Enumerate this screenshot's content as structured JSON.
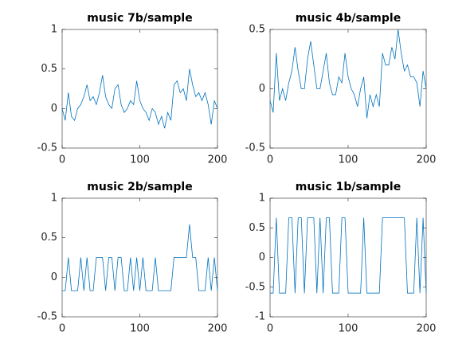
{
  "chart_data": [
    {
      "type": "line",
      "title": "music 7b/sample",
      "xlim": [
        0,
        200
      ],
      "xticks": [
        0,
        100,
        200
      ],
      "ylim": [
        -0.5,
        1
      ],
      "yticks": [
        -0.5,
        0,
        0.5,
        1
      ],
      "color": "#0072bd",
      "x": [
        0,
        4,
        8,
        12,
        16,
        20,
        24,
        28,
        32,
        36,
        40,
        44,
        48,
        52,
        56,
        60,
        64,
        68,
        72,
        76,
        80,
        84,
        88,
        92,
        96,
        100,
        104,
        108,
        112,
        116,
        120,
        124,
        128,
        132,
        136,
        140,
        144,
        148,
        152,
        156,
        160,
        164,
        168,
        172,
        176,
        180,
        184,
        188,
        192,
        196,
        200
      ],
      "values": [
        0,
        -0.15,
        0.2,
        -0.1,
        -0.15,
        0,
        0.05,
        0.15,
        0.3,
        0.1,
        0.15,
        0.05,
        0.2,
        0.42,
        0.15,
        0.05,
        0,
        0.25,
        0.3,
        0.05,
        -0.05,
        0,
        0.1,
        0.05,
        0.35,
        0.1,
        0,
        -0.05,
        -0.15,
        0,
        -0.05,
        -0.2,
        -0.1,
        -0.25,
        -0.05,
        -0.15,
        0.3,
        0.35,
        0.2,
        0.25,
        0.1,
        0.5,
        0.3,
        0.15,
        0.2,
        0.1,
        0.2,
        0.05,
        -0.2,
        0.1,
        0
      ]
    },
    {
      "type": "line",
      "title": "music 4b/sample",
      "xlim": [
        0,
        200
      ],
      "xticks": [
        0,
        100,
        200
      ],
      "ylim": [
        -0.5,
        0.5
      ],
      "yticks": [
        -0.5,
        0,
        0.5
      ],
      "color": "#0072bd",
      "x": [
        0,
        4,
        8,
        12,
        16,
        20,
        24,
        28,
        32,
        36,
        40,
        44,
        48,
        52,
        56,
        60,
        64,
        68,
        72,
        76,
        80,
        84,
        88,
        92,
        96,
        100,
        104,
        108,
        112,
        116,
        120,
        124,
        128,
        132,
        136,
        140,
        144,
        148,
        152,
        156,
        160,
        164,
        168,
        172,
        176,
        180,
        184,
        188,
        192,
        196,
        200
      ],
      "values": [
        -0.1,
        -0.2,
        0.3,
        -0.1,
        0,
        -0.1,
        0.05,
        0.15,
        0.35,
        0.15,
        0,
        0,
        0.25,
        0.4,
        0.2,
        0,
        0,
        0.15,
        0.3,
        0.05,
        -0.05,
        -0.05,
        0.1,
        0.05,
        0.3,
        0.1,
        0,
        -0.05,
        -0.15,
        0,
        0.1,
        -0.25,
        -0.05,
        -0.15,
        -0.05,
        -0.15,
        0.3,
        0.2,
        0.2,
        0.35,
        0.25,
        0.5,
        0.3,
        0.15,
        0.2,
        0.1,
        0.1,
        0.05,
        -0.15,
        0.15,
        0
      ]
    },
    {
      "type": "line",
      "title": "music 2b/sample",
      "xlim": [
        0,
        200
      ],
      "xticks": [
        0,
        100,
        200
      ],
      "ylim": [
        -0.5,
        1
      ],
      "yticks": [
        -0.5,
        0,
        0.5,
        1
      ],
      "color": "#0072bd",
      "x": [
        0,
        4,
        8,
        12,
        16,
        20,
        24,
        28,
        32,
        36,
        40,
        44,
        48,
        52,
        56,
        60,
        64,
        68,
        72,
        76,
        80,
        84,
        88,
        92,
        96,
        100,
        104,
        108,
        112,
        116,
        120,
        124,
        128,
        132,
        136,
        140,
        144,
        148,
        152,
        156,
        160,
        164,
        168,
        172,
        176,
        180,
        184,
        188,
        192,
        196,
        200
      ],
      "values": [
        -0.17,
        -0.17,
        0.25,
        -0.17,
        -0.17,
        -0.17,
        0.25,
        -0.17,
        0.25,
        -0.17,
        -0.17,
        0.25,
        0.25,
        0.25,
        -0.17,
        0.25,
        0.25,
        -0.17,
        0.25,
        0.25,
        -0.17,
        -0.17,
        0.25,
        -0.17,
        0.25,
        -0.17,
        0.25,
        -0.17,
        -0.17,
        -0.17,
        0.25,
        -0.17,
        -0.17,
        -0.17,
        -0.17,
        -0.17,
        0.25,
        0.25,
        0.25,
        0.25,
        0.25,
        0.67,
        0.25,
        0.25,
        -0.17,
        -0.17,
        -0.17,
        0.25,
        -0.17,
        0.25,
        -0.17
      ]
    },
    {
      "type": "line",
      "title": "music 1b/sample",
      "xlim": [
        0,
        200
      ],
      "xticks": [
        0,
        100,
        200
      ],
      "ylim": [
        -1,
        1
      ],
      "yticks": [
        -1,
        -0.5,
        0,
        0.5,
        1
      ],
      "color": "#0072bd",
      "x": [
        0,
        4,
        8,
        12,
        16,
        20,
        24,
        28,
        32,
        36,
        40,
        44,
        48,
        52,
        56,
        60,
        64,
        68,
        72,
        76,
        80,
        84,
        88,
        92,
        96,
        100,
        104,
        108,
        112,
        116,
        120,
        124,
        128,
        132,
        136,
        140,
        144,
        148,
        152,
        156,
        160,
        164,
        168,
        172,
        176,
        180,
        184,
        188,
        192,
        196,
        200
      ],
      "values": [
        -0.6,
        -0.6,
        0.67,
        -0.6,
        -0.6,
        -0.6,
        0.67,
        0.67,
        -0.6,
        0.67,
        0.67,
        -0.6,
        0.67,
        0.67,
        0.67,
        -0.6,
        0.67,
        -0.6,
        0.67,
        0.67,
        -0.6,
        -0.6,
        -0.6,
        0.67,
        0.67,
        -0.6,
        -0.6,
        -0.6,
        -0.6,
        -0.6,
        0.67,
        -0.6,
        -0.6,
        -0.6,
        -0.6,
        -0.6,
        0.67,
        0.67,
        0.67,
        0.67,
        0.67,
        0.67,
        0.67,
        0.67,
        -0.6,
        -0.6,
        -0.6,
        0.67,
        -0.6,
        0.67,
        -0.6
      ]
    }
  ]
}
